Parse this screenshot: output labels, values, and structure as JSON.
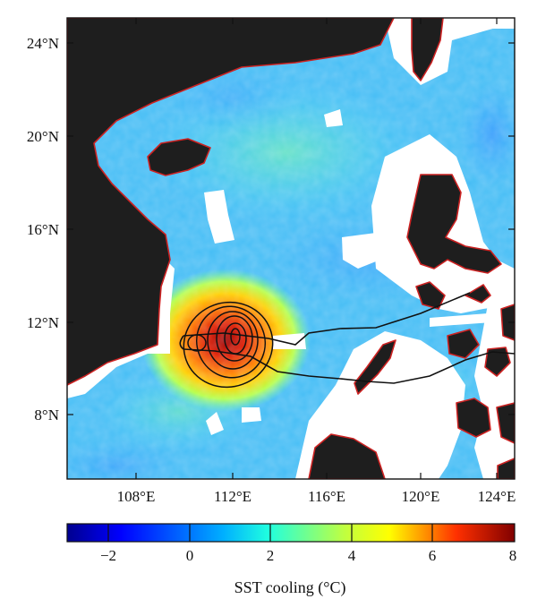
{
  "figure": {
    "y_ticks": [
      "24°N",
      "20°N",
      "16°N",
      "12°N",
      "8°N"
    ],
    "x_ticks": [
      "108°E",
      "112°E",
      "116°E",
      "120°E",
      "124°E"
    ],
    "colorbar": {
      "ticks": [
        "−2",
        "0",
        "2",
        "4",
        "6",
        "8"
      ],
      "range": [
        -3.5,
        8
      ],
      "label": "SST cooling (°C)"
    },
    "colors": {
      "land": "#1c1c1c",
      "coast_outline": "#cc2020",
      "no_data": "#ffffff",
      "contour": "#111111",
      "track": "#111111"
    },
    "colormap": "jet"
  }
}
